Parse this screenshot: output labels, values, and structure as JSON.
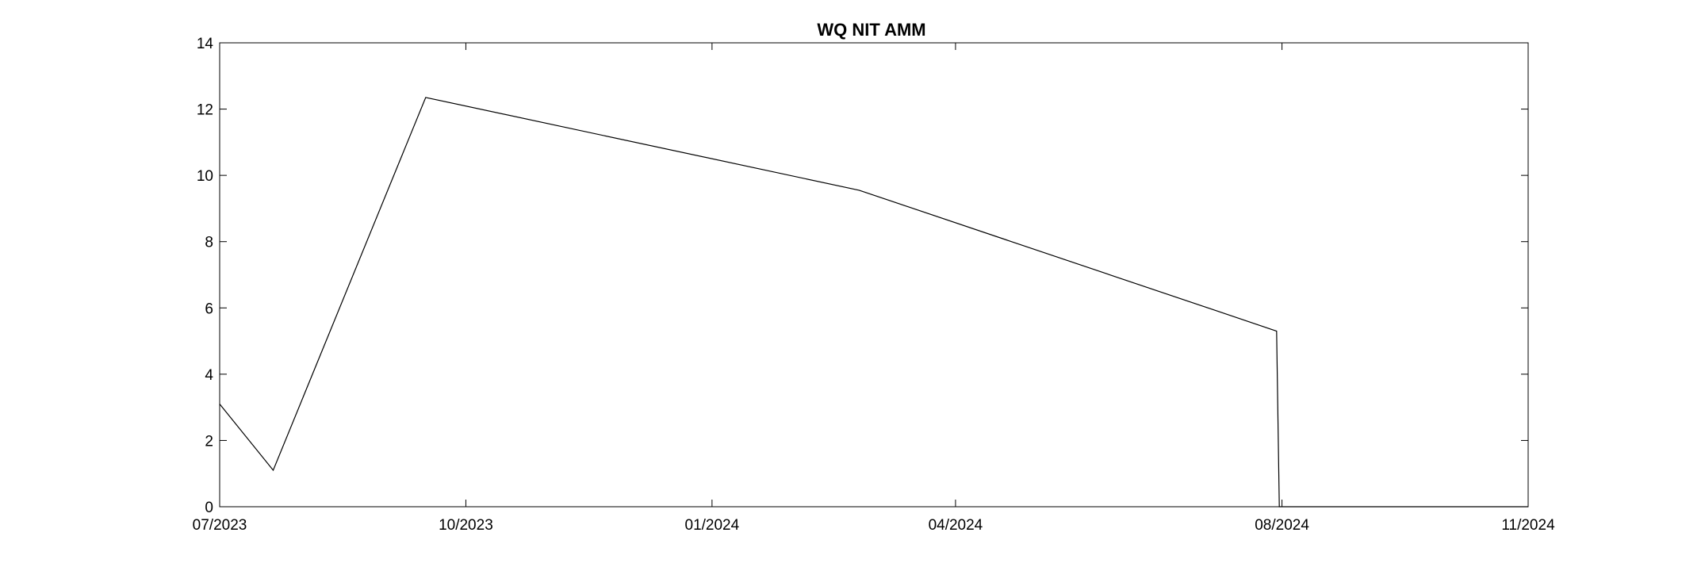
{
  "chart_data": {
    "type": "line",
    "title": "WQ NIT AMM",
    "xlabel": "",
    "ylabel": "",
    "x_scale": "date",
    "xlim": [
      "2023-07-01",
      "2024-11-01"
    ],
    "ylim": [
      0,
      14
    ],
    "x_ticks": [
      {
        "date": "2023-07-01",
        "label": "07/2023"
      },
      {
        "date": "2023-10-01",
        "label": "10/2023"
      },
      {
        "date": "2024-01-01",
        "label": "01/2024"
      },
      {
        "date": "2024-04-01",
        "label": "04/2024"
      },
      {
        "date": "2024-08-01",
        "label": "08/2024"
      },
      {
        "date": "2024-11-01",
        "label": "11/2024"
      }
    ],
    "y_ticks": [
      0,
      2,
      4,
      6,
      8,
      10,
      12,
      14
    ],
    "grid": false,
    "legend": "none",
    "line_color": "#000000",
    "series": [
      {
        "x": [
          "2023-07-01",
          "2023-07-21",
          "2023-09-16",
          "2024-02-25",
          "2024-07-30",
          "2024-07-31",
          "2024-11-01"
        ],
        "y": [
          3.1,
          1.1,
          12.35,
          9.55,
          5.3,
          0.0,
          0.0
        ]
      }
    ]
  }
}
